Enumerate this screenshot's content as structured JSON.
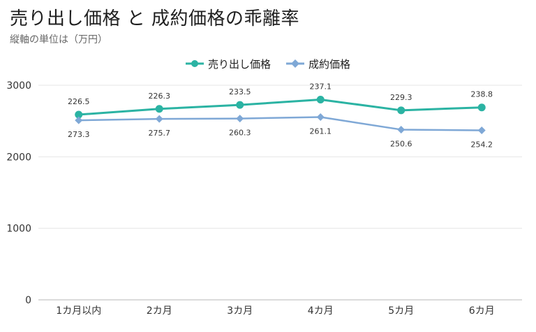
{
  "title": "売り出し価格 と 成約価格の乖離率",
  "subtitle": "縦軸の単位は（万円）",
  "colors": {
    "series1": "#2bb3a3",
    "series2": "#7fa8d6",
    "grid": "#e6e6e6",
    "axis": "#cfcfcf"
  },
  "chart_data": {
    "type": "line",
    "title": "売り出し価格 と 成約価格の乖離率",
    "subtitle": "縦軸の単位は（万円）",
    "categories": [
      "1カ月以内",
      "2カ月",
      "3カ月",
      "4カ月",
      "5カ月",
      "6カ月"
    ],
    "series": [
      {
        "name": "売り出し価格",
        "marker": "circle",
        "values": [
          2590,
          2670,
          2725,
          2800,
          2650,
          2690
        ],
        "labels": [
          "226.5",
          "226.3",
          "233.5",
          "237.1",
          "229.3",
          "238.8"
        ],
        "label_position": "above"
      },
      {
        "name": "成約価格",
        "marker": "diamond",
        "values": [
          2510,
          2530,
          2535,
          2555,
          2380,
          2370
        ],
        "labels": [
          "273.3",
          "275.7",
          "260.3",
          "261.1",
          "250.6",
          "254.2"
        ],
        "label_position": "below"
      }
    ],
    "y_ticks": [
      "0",
      "1000",
      "2000",
      "3000"
    ],
    "ylim": [
      0,
      3000
    ],
    "grid": true,
    "legend": "top-center"
  }
}
